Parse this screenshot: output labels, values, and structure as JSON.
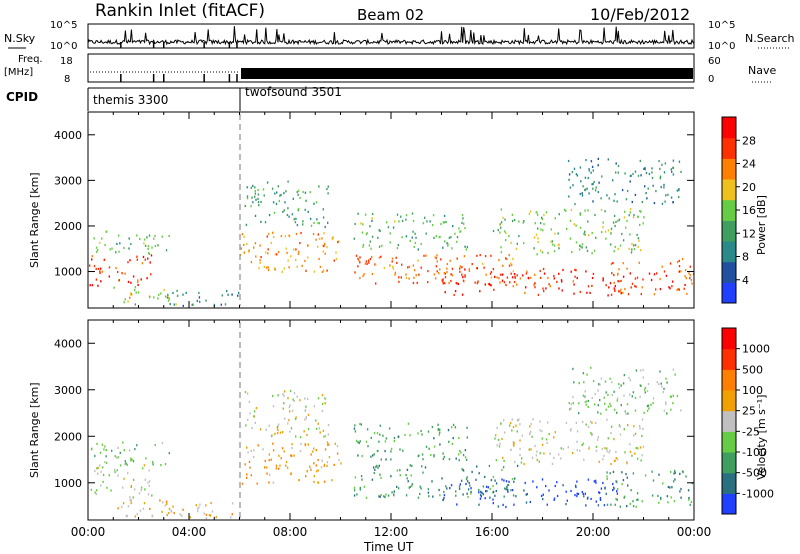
{
  "header": {
    "station": "Rankin Inlet (fitACF)",
    "beam": "Beam 02",
    "date": "10/Feb/2012"
  },
  "noise_panel": {
    "left_label": "N.Sky",
    "right_label": "N.Search",
    "left_ticks": [
      "10^5",
      "10^0"
    ],
    "right_ticks": [
      "10^5",
      "10^0"
    ]
  },
  "freq_panel": {
    "left_label_1": "Freq.",
    "left_label_2": "[MHz]",
    "right_label": "Nave",
    "left_ticks": [
      "18",
      "8"
    ],
    "right_ticks": [
      "60",
      "0"
    ]
  },
  "cpid_panel": {
    "label": "CPID",
    "modes": [
      {
        "name": "themis 3300",
        "start_hour": 0,
        "end_hour": 6
      },
      {
        "name": "twofsound 3501",
        "start_hour": 6,
        "end_hour": 24
      }
    ]
  },
  "power_panel": {
    "ylabel": "Slant Range [km]",
    "yticks": [
      "4000",
      "3000",
      "2000",
      "1000"
    ],
    "colorbar_label": "Power [dB]",
    "colorbar_ticks": [
      "28",
      "24",
      "20",
      "16",
      "12",
      "8",
      "4"
    ],
    "colors": [
      "#2040ff",
      "#2050a0",
      "#2a8a8a",
      "#3f9f5f",
      "#66cc44",
      "#f0c020",
      "#ff8000",
      "#ff3000",
      "#ff0000"
    ]
  },
  "velocity_panel": {
    "ylabel": "Slant Range [km]",
    "yticks": [
      "4000",
      "3000",
      "2000",
      "1000"
    ],
    "colorbar_label": "Velocity [m s⁻¹]",
    "colorbar_ticks": [
      "1000",
      "500",
      "100",
      "25",
      "-25",
      "-100",
      "-500",
      "-1000"
    ],
    "colors": [
      "#2040ff",
      "#2a7080",
      "#3f9f5f",
      "#66cc44",
      "#c0c0c0",
      "#f0a000",
      "#ff8000",
      "#ff3000",
      "#ff0000"
    ]
  },
  "xaxis": {
    "label": "Time UT",
    "ticks": [
      "00:00",
      "04:00",
      "08:00",
      "12:00",
      "16:00",
      "20:00",
      "00:00"
    ]
  },
  "chart_data": [
    {
      "type": "heatmap",
      "title": "Power",
      "xlabel": "Time UT",
      "ylabel": "Slant Range [km]",
      "xlim": [
        0,
        24
      ],
      "ylim": [
        200,
        4500
      ],
      "colorbar": {
        "label": "Power [dB]",
        "range": [
          0,
          32
        ]
      },
      "blobs": [
        {
          "t0": 0.0,
          "t1": 2.5,
          "r0": 700,
          "r1": 1400,
          "value": 28
        },
        {
          "t0": 0.1,
          "t1": 3.2,
          "r0": 1400,
          "r1": 1900,
          "value": 14
        },
        {
          "t0": 1.0,
          "t1": 3.5,
          "r0": 300,
          "r1": 700,
          "value": 18
        },
        {
          "t0": 3.0,
          "t1": 6.0,
          "r0": 250,
          "r1": 600,
          "value": 10
        },
        {
          "t0": 6.0,
          "t1": 10.0,
          "r0": 1000,
          "r1": 1900,
          "value": 22
        },
        {
          "t0": 6.2,
          "t1": 9.5,
          "r0": 2000,
          "r1": 3000,
          "value": 12
        },
        {
          "t0": 10.5,
          "t1": 15.0,
          "r0": 1500,
          "r1": 2300,
          "value": 14
        },
        {
          "t0": 10.5,
          "t1": 17.0,
          "r0": 700,
          "r1": 1400,
          "value": 24
        },
        {
          "t0": 14.0,
          "t1": 21.0,
          "r0": 500,
          "r1": 1100,
          "value": 28
        },
        {
          "t0": 20.5,
          "t1": 24.0,
          "r0": 500,
          "r1": 1300,
          "value": 26
        },
        {
          "t0": 16.0,
          "t1": 22.0,
          "r0": 1400,
          "r1": 2400,
          "value": 16
        },
        {
          "t0": 19.0,
          "t1": 23.5,
          "r0": 2500,
          "r1": 3500,
          "value": 10
        }
      ]
    },
    {
      "type": "heatmap",
      "title": "Velocity",
      "xlabel": "Time UT",
      "ylabel": "Slant Range [km]",
      "xlim": [
        0,
        24
      ],
      "ylim": [
        200,
        4500
      ],
      "colorbar": {
        "label": "Velocity [m s⁻¹]",
        "range": [
          -1000,
          1000
        ]
      },
      "blobs": [
        {
          "t0": 0.0,
          "t1": 2.5,
          "r0": 700,
          "r1": 1400,
          "value": -80
        },
        {
          "t0": 0.1,
          "t1": 3.2,
          "r0": 1400,
          "r1": 1900,
          "value": -300
        },
        {
          "t0": 1.0,
          "t1": 3.5,
          "r0": 300,
          "r1": 700,
          "value": 200
        },
        {
          "t0": 3.0,
          "t1": 6.0,
          "r0": 250,
          "r1": 600,
          "value": 150
        },
        {
          "t0": 6.0,
          "t1": 10.0,
          "r0": 1000,
          "r1": 1900,
          "value": 300
        },
        {
          "t0": 6.2,
          "t1": 9.5,
          "r0": 2000,
          "r1": 3000,
          "value": 0
        },
        {
          "t0": 10.5,
          "t1": 15.0,
          "r0": 1500,
          "r1": 2300,
          "value": -400
        },
        {
          "t0": 10.5,
          "t1": 17.0,
          "r0": 700,
          "r1": 1400,
          "value": -500
        },
        {
          "t0": 14.0,
          "t1": 21.0,
          "r0": 500,
          "r1": 1100,
          "value": -900
        },
        {
          "t0": 20.5,
          "t1": 24.0,
          "r0": 500,
          "r1": 1300,
          "value": -400
        },
        {
          "t0": 16.0,
          "t1": 22.0,
          "r0": 1400,
          "r1": 2400,
          "value": 0
        },
        {
          "t0": 19.0,
          "t1": 23.5,
          "r0": 2500,
          "r1": 3500,
          "value": -200
        }
      ]
    }
  ]
}
